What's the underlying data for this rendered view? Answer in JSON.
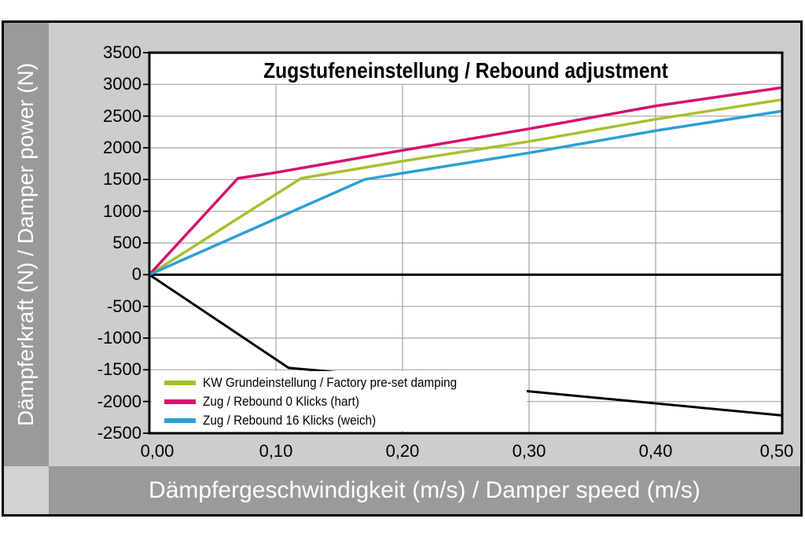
{
  "title": "Zugstufeneinstellung / Rebound adjustment",
  "y_axis": {
    "label": "Dämpferkraft (N) / Damper power (N)",
    "ticks": [
      "3500",
      "3000",
      "2500",
      "2000",
      "1500",
      "1000",
      "500",
      "0",
      "-500",
      "-1000",
      "-1500",
      "-2000",
      "-2500"
    ]
  },
  "x_axis": {
    "label": "Dämpfergeschwindigkeit (m/s) / Damper speed (m/s)",
    "ticks": [
      "0,00",
      "0,10",
      "0,20",
      "0,30",
      "0,40",
      "0,50"
    ]
  },
  "legend": {
    "items": [
      {
        "label": "KW Grundeinstellung / Factory pre-set damping",
        "color": "#a4c22f"
      },
      {
        "label": "Zug / Rebound 0 Klicks (hart)",
        "color": "#d5106e"
      },
      {
        "label": "Zug / Rebound 16 Klicks (weich)",
        "color": "#2d9ed6"
      }
    ]
  },
  "chart_data": {
    "type": "line",
    "title": "Zugstufeneinstellung / Rebound adjustment",
    "xlabel": "Dämpfergeschwindigkeit (m/s) / Damper speed (m/s)",
    "ylabel": "Dämpferkraft (N) / Damper power (N)",
    "xlim": [
      0,
      0.5
    ],
    "ylim": [
      -2500,
      3500
    ],
    "x_tick_values": [
      0,
      0.1,
      0.2,
      0.3,
      0.4,
      0.5
    ],
    "x_tick_labels": [
      "0,00",
      "0,10",
      "0,20",
      "0,30",
      "0,40",
      "0,50"
    ],
    "y_tick_values": [
      3500,
      3000,
      2500,
      2000,
      1500,
      1000,
      500,
      0,
      -500,
      -1000,
      -1500,
      -2000,
      -2500
    ],
    "grid": true,
    "legend_position": "inside lower-left",
    "series": [
      {
        "name": "KW Grundeinstellung / Factory pre-set damping",
        "color": "#a4c22f",
        "in_legend": true,
        "points": [
          [
            0,
            0
          ],
          [
            0.12,
            1520
          ],
          [
            0.2,
            1790
          ],
          [
            0.3,
            2100
          ],
          [
            0.4,
            2450
          ],
          [
            0.5,
            2760
          ]
        ]
      },
      {
        "name": "Zug / Rebound 0 Klicks (hart)",
        "color": "#d5106e",
        "in_legend": true,
        "points": [
          [
            0,
            0
          ],
          [
            0.07,
            1520
          ],
          [
            0.1,
            1610
          ],
          [
            0.2,
            1960
          ],
          [
            0.3,
            2300
          ],
          [
            0.4,
            2660
          ],
          [
            0.5,
            2950
          ]
        ]
      },
      {
        "name": "Zug / Rebound 16 Klicks (weich)",
        "color": "#2d9ed6",
        "in_legend": true,
        "points": [
          [
            0,
            0
          ],
          [
            0.17,
            1500
          ],
          [
            0.2,
            1600
          ],
          [
            0.3,
            1920
          ],
          [
            0.4,
            2270
          ],
          [
            0.5,
            2580
          ]
        ]
      },
      {
        "name": "unlabeled-compression-curve",
        "color": "#000000",
        "in_legend": false,
        "points": [
          [
            0,
            0
          ],
          [
            0.11,
            -1470
          ],
          [
            0.13,
            -1505
          ],
          [
            0.3,
            -1840
          ],
          [
            0.5,
            -2220
          ]
        ]
      }
    ]
  },
  "colors": {
    "canvas": "#cdcdcd",
    "band": "#9a9a9a",
    "corner": "#d2d2d2",
    "plot_background": "#ffffff",
    "gridline": "#a4a4a4",
    "axis": "#000000"
  }
}
